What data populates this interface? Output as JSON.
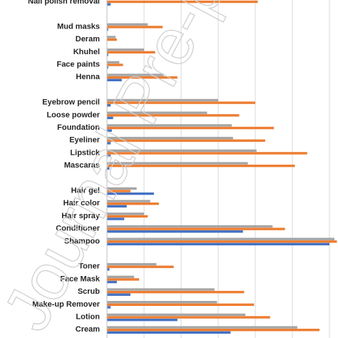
{
  "chart_data": {
    "type": "bar",
    "orientation": "horizontal",
    "xlim": [
      0,
      180
    ],
    "grid": true,
    "categories": [
      "Nail polish removal",
      "",
      "Mud masks",
      "Deram",
      "Khuhel",
      "Face paints",
      "Henna",
      "",
      "Eyebrow pencil",
      "Loose powder",
      "Foundation",
      "Eyeliner",
      "Lipstick",
      "Mascaras",
      "",
      "Hair gel",
      "Hair color",
      "Hair spray",
      "Conditioner",
      "Shampoo",
      "",
      "Toner",
      "Face Mask",
      "Scrub",
      "Make-up Remover",
      "Lotion",
      "Cream"
    ],
    "series": [
      {
        "color": "#4472c4",
        "values": [
          3,
          null,
          1,
          0,
          1,
          1,
          12,
          null,
          3,
          5,
          4,
          3,
          3,
          2,
          null,
          38,
          16,
          14,
          110,
          180,
          null,
          2,
          8,
          19,
          3,
          57,
          100
        ]
      },
      {
        "color": "#ed7d31",
        "values": [
          122,
          null,
          45,
          8,
          39,
          13,
          57,
          null,
          120,
          107,
          135,
          128,
          162,
          152,
          null,
          19,
          42,
          33,
          144,
          186,
          null,
          54,
          26,
          111,
          119,
          132,
          172
        ]
      },
      {
        "color": "#a5a5a5",
        "values": [
          null,
          null,
          33,
          7,
          30,
          10,
          46,
          null,
          90,
          81,
          101,
          102,
          121,
          114,
          null,
          24,
          35,
          30,
          134,
          184,
          null,
          40,
          22,
          87,
          89,
          112,
          154
        ]
      }
    ]
  },
  "watermark": "Journal Pre-proof"
}
